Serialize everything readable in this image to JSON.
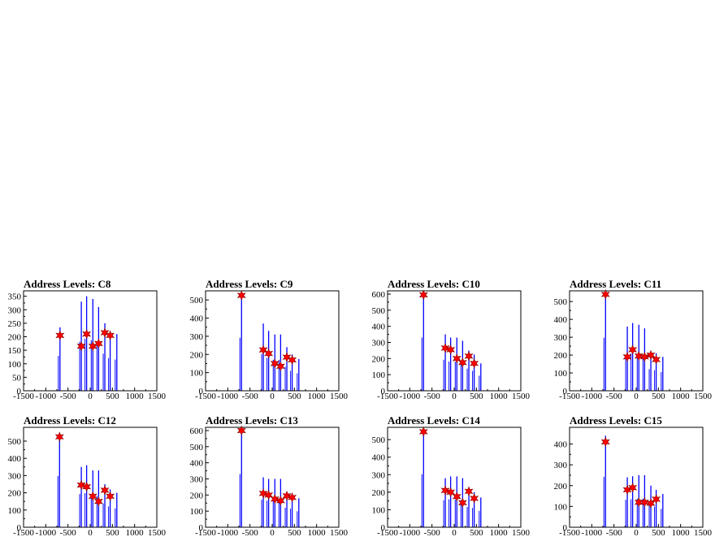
{
  "colors": {
    "bars": "#0000ff",
    "markers": "#ff0000",
    "frame": "#000000",
    "background": "#ffffff"
  },
  "chart_data": [
    {
      "type": "bar",
      "title": "Address Levels: C8",
      "xlim": [
        -1500,
        1500
      ],
      "xticks": [
        -1500,
        -1000,
        -500,
        0,
        500,
        1000,
        1500
      ],
      "ylim": [
        0,
        370
      ],
      "yticks": [
        0,
        50,
        100,
        150,
        200,
        250,
        300,
        350
      ],
      "bars": [
        [
          -680,
          235
        ],
        [
          -200,
          330
        ],
        [
          -80,
          350
        ],
        [
          60,
          340
        ],
        [
          190,
          310
        ],
        [
          330,
          250
        ],
        [
          450,
          220
        ],
        [
          600,
          210
        ]
      ],
      "markers": [
        [
          -680,
          205
        ],
        [
          -200,
          165
        ],
        [
          -80,
          210
        ],
        [
          60,
          165
        ],
        [
          190,
          175
        ],
        [
          330,
          215
        ],
        [
          450,
          205
        ]
      ]
    },
    {
      "type": "bar",
      "title": "Address Levels: C9",
      "xlim": [
        -1500,
        1500
      ],
      "xticks": [
        -1500,
        -1000,
        -500,
        0,
        500,
        1000,
        1500
      ],
      "ylim": [
        0,
        550
      ],
      "yticks": [
        0,
        100,
        200,
        300,
        400,
        500
      ],
      "bars": [
        [
          -690,
          530
        ],
        [
          -200,
          370
        ],
        [
          -80,
          330
        ],
        [
          60,
          310
        ],
        [
          190,
          310
        ],
        [
          330,
          240
        ],
        [
          450,
          200
        ],
        [
          600,
          175
        ]
      ],
      "markers": [
        [
          -690,
          525
        ],
        [
          -200,
          225
        ],
        [
          -80,
          205
        ],
        [
          60,
          150
        ],
        [
          190,
          135
        ],
        [
          330,
          185
        ],
        [
          450,
          170
        ]
      ]
    },
    {
      "type": "bar",
      "title": "Address Levels: C10",
      "xlim": [
        -1500,
        1500
      ],
      "xticks": [
        -1500,
        -1000,
        -500,
        0,
        500,
        1000,
        1500
      ],
      "ylim": [
        0,
        620
      ],
      "yticks": [
        0,
        100,
        200,
        300,
        400,
        500,
        600
      ],
      "bars": [
        [
          -690,
          600
        ],
        [
          -200,
          350
        ],
        [
          -80,
          330
        ],
        [
          60,
          330
        ],
        [
          190,
          310
        ],
        [
          330,
          250
        ],
        [
          450,
          225
        ],
        [
          600,
          170
        ]
      ],
      "markers": [
        [
          -690,
          595
        ],
        [
          -200,
          265
        ],
        [
          -80,
          255
        ],
        [
          60,
          200
        ],
        [
          190,
          175
        ],
        [
          330,
          215
        ],
        [
          450,
          170
        ]
      ]
    },
    {
      "type": "bar",
      "title": "Address Levels: C11",
      "xlim": [
        -1500,
        1500
      ],
      "xticks": [
        -1500,
        -1000,
        -500,
        0,
        500,
        1000,
        1500
      ],
      "ylim": [
        0,
        560
      ],
      "yticks": [
        0,
        100,
        200,
        300,
        400,
        500
      ],
      "bars": [
        [
          -690,
          540
        ],
        [
          -200,
          360
        ],
        [
          -80,
          380
        ],
        [
          60,
          370
        ],
        [
          190,
          350
        ],
        [
          330,
          220
        ],
        [
          450,
          210
        ],
        [
          600,
          190
        ]
      ],
      "markers": [
        [
          -690,
          540
        ],
        [
          -200,
          190
        ],
        [
          -80,
          230
        ],
        [
          60,
          195
        ],
        [
          190,
          190
        ],
        [
          330,
          200
        ],
        [
          450,
          175
        ]
      ]
    },
    {
      "type": "bar",
      "title": "Address Levels: C12",
      "xlim": [
        -1500,
        1500
      ],
      "xticks": [
        -1500,
        -1000,
        -500,
        0,
        500,
        1000,
        1500
      ],
      "ylim": [
        0,
        580
      ],
      "yticks": [
        0,
        100,
        200,
        300,
        400,
        500
      ],
      "bars": [
        [
          -690,
          540
        ],
        [
          -200,
          350
        ],
        [
          -80,
          360
        ],
        [
          60,
          330
        ],
        [
          190,
          330
        ],
        [
          330,
          250
        ],
        [
          450,
          220
        ],
        [
          600,
          200
        ]
      ],
      "markers": [
        [
          -690,
          525
        ],
        [
          -200,
          245
        ],
        [
          -80,
          235
        ],
        [
          60,
          180
        ],
        [
          190,
          150
        ],
        [
          330,
          215
        ],
        [
          450,
          180
        ]
      ]
    },
    {
      "type": "bar",
      "title": "Address Levels: C13",
      "xlim": [
        -1500,
        1500
      ],
      "xticks": [
        -1500,
        -1000,
        -500,
        0,
        500,
        1000,
        1500
      ],
      "ylim": [
        0,
        620
      ],
      "yticks": [
        0,
        100,
        200,
        300,
        400,
        500,
        600
      ],
      "bars": [
        [
          -690,
          600
        ],
        [
          -200,
          310
        ],
        [
          -80,
          300
        ],
        [
          60,
          300
        ],
        [
          190,
          300
        ],
        [
          330,
          220
        ],
        [
          450,
          210
        ],
        [
          600,
          180
        ]
      ],
      "markers": [
        [
          -690,
          600
        ],
        [
          -200,
          210
        ],
        [
          -80,
          200
        ],
        [
          60,
          175
        ],
        [
          190,
          165
        ],
        [
          330,
          195
        ],
        [
          450,
          185
        ]
      ]
    },
    {
      "type": "bar",
      "title": "Address Levels: C14",
      "xlim": [
        -1500,
        1500
      ],
      "xticks": [
        -1500,
        -1000,
        -500,
        0,
        500,
        1000,
        1500
      ],
      "ylim": [
        0,
        570
      ],
      "yticks": [
        0,
        100,
        200,
        300,
        400,
        500
      ],
      "bars": [
        [
          -690,
          550
        ],
        [
          -200,
          280
        ],
        [
          -80,
          290
        ],
        [
          60,
          290
        ],
        [
          190,
          280
        ],
        [
          330,
          210
        ],
        [
          450,
          200
        ],
        [
          600,
          170
        ]
      ],
      "markers": [
        [
          -690,
          545
        ],
        [
          -200,
          210
        ],
        [
          -80,
          200
        ],
        [
          60,
          175
        ],
        [
          190,
          140
        ],
        [
          330,
          205
        ],
        [
          450,
          165
        ]
      ]
    },
    {
      "type": "bar",
      "title": "Address Levels: C15",
      "xlim": [
        -1500,
        1500
      ],
      "xticks": [
        -1500,
        -1000,
        -500,
        0,
        500,
        1000,
        1500
      ],
      "ylim": [
        0,
        480
      ],
      "yticks": [
        0,
        100,
        200,
        300,
        400
      ],
      "bars": [
        [
          -690,
          440
        ],
        [
          -200,
          240
        ],
        [
          -80,
          245
        ],
        [
          60,
          250
        ],
        [
          190,
          250
        ],
        [
          330,
          200
        ],
        [
          450,
          180
        ],
        [
          600,
          160
        ]
      ],
      "markers": [
        [
          -690,
          410
        ],
        [
          -200,
          180
        ],
        [
          -80,
          190
        ],
        [
          60,
          120
        ],
        [
          190,
          120
        ],
        [
          330,
          115
        ],
        [
          450,
          135
        ]
      ]
    }
  ]
}
